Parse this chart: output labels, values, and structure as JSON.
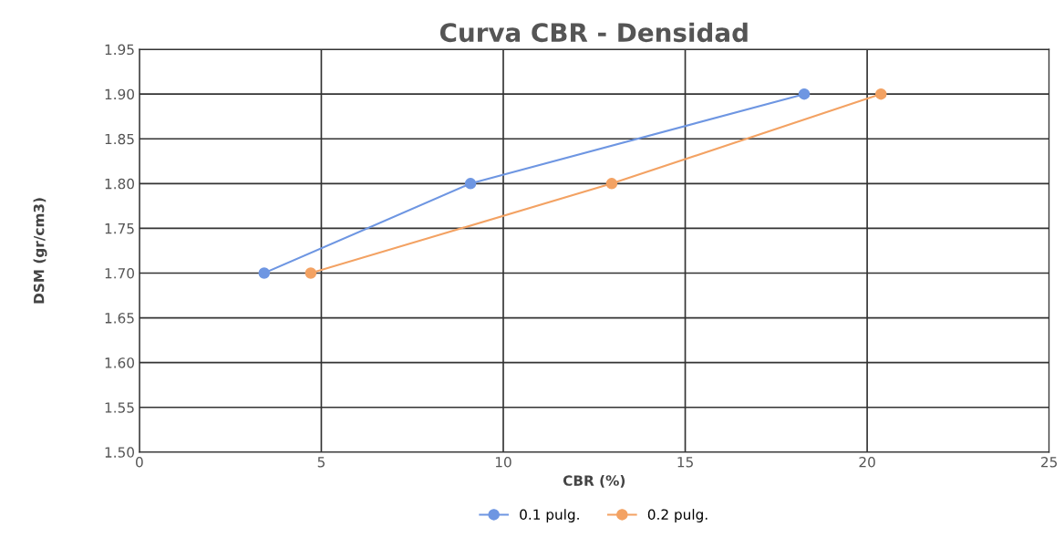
{
  "chart_data": {
    "type": "line",
    "title": "Curva CBR - Densidad",
    "xlabel": "CBR (%)",
    "ylabel": "DSM (gr/cm3)",
    "series": [
      {
        "name": "0.1 pulg.",
        "color": "#6e96e2",
        "x": [
          3.43,
          9.1,
          18.27
        ],
        "values": [
          1.7,
          1.8,
          1.9
        ]
      },
      {
        "name": "0.2 pulg.",
        "color": "#f3a263",
        "x": [
          4.71,
          12.98,
          20.38
        ],
        "values": [
          1.7,
          1.8,
          1.9
        ]
      }
    ],
    "xlim": [
      0,
      25
    ],
    "xticks": [
      0,
      5,
      10,
      15,
      20,
      25
    ],
    "ylim": [
      1.5,
      1.95
    ],
    "yticks": [
      {
        "value": 1.5,
        "label": "1.50"
      },
      {
        "value": 1.55,
        "label": "1.55"
      },
      {
        "value": 1.6,
        "label": "1.60"
      },
      {
        "value": 1.65,
        "label": "1.65"
      },
      {
        "value": 1.7,
        "label": "1.70"
      },
      {
        "value": 1.75,
        "label": "1.75"
      },
      {
        "value": 1.8,
        "label": "1.80"
      },
      {
        "value": 1.85,
        "label": "1.85"
      },
      {
        "value": 1.9,
        "label": "1.90"
      },
      {
        "value": 1.95,
        "label": "1.95"
      }
    ],
    "grid": true,
    "legend": "bottom",
    "marker": "circle",
    "line_style": "solid"
  }
}
